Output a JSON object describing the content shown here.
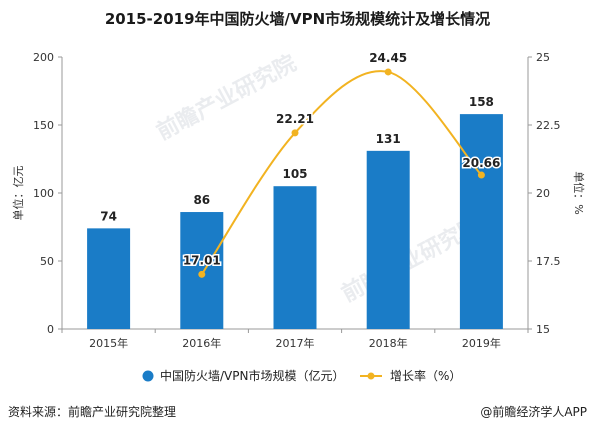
{
  "chart_data": {
    "type": "bar",
    "title": "2015-2019年中国防火墙/VPN市场规模统计及增长情况",
    "categories": [
      "2015年",
      "2016年",
      "2017年",
      "2018年",
      "2019年"
    ],
    "series": [
      {
        "name": "中国防火墙/VPN市场规模（亿元）",
        "type": "bar",
        "axis": "left",
        "values": [
          74,
          86,
          105,
          131,
          158
        ],
        "color": "#1a7cc7"
      },
      {
        "name": "增长率（%）",
        "type": "line",
        "axis": "right",
        "values": [
          null,
          17.01,
          22.21,
          24.45,
          20.66
        ],
        "color": "#f2b321"
      }
    ],
    "y_left": {
      "label": "单位：亿元",
      "min": 0,
      "max": 200,
      "ticks": [
        "0",
        "50",
        "100",
        "150",
        "200"
      ]
    },
    "y_right": {
      "label": "单位：%",
      "min": 15,
      "max": 25,
      "ticks": [
        "15",
        "17.5",
        "20",
        "22.5",
        "25"
      ]
    },
    "bar_labels": [
      "74",
      "86",
      "105",
      "131",
      "158"
    ],
    "line_labels": [
      "",
      "17.01",
      "22.21",
      "24.45",
      "20.66"
    ],
    "legend_position": "bottom",
    "grid": false
  },
  "footer": {
    "source": "资料来源：前瞻产业研究院整理",
    "brand": "@前瞻经济学人APP"
  },
  "watermark": {
    "text": "前瞻产业研究院"
  }
}
